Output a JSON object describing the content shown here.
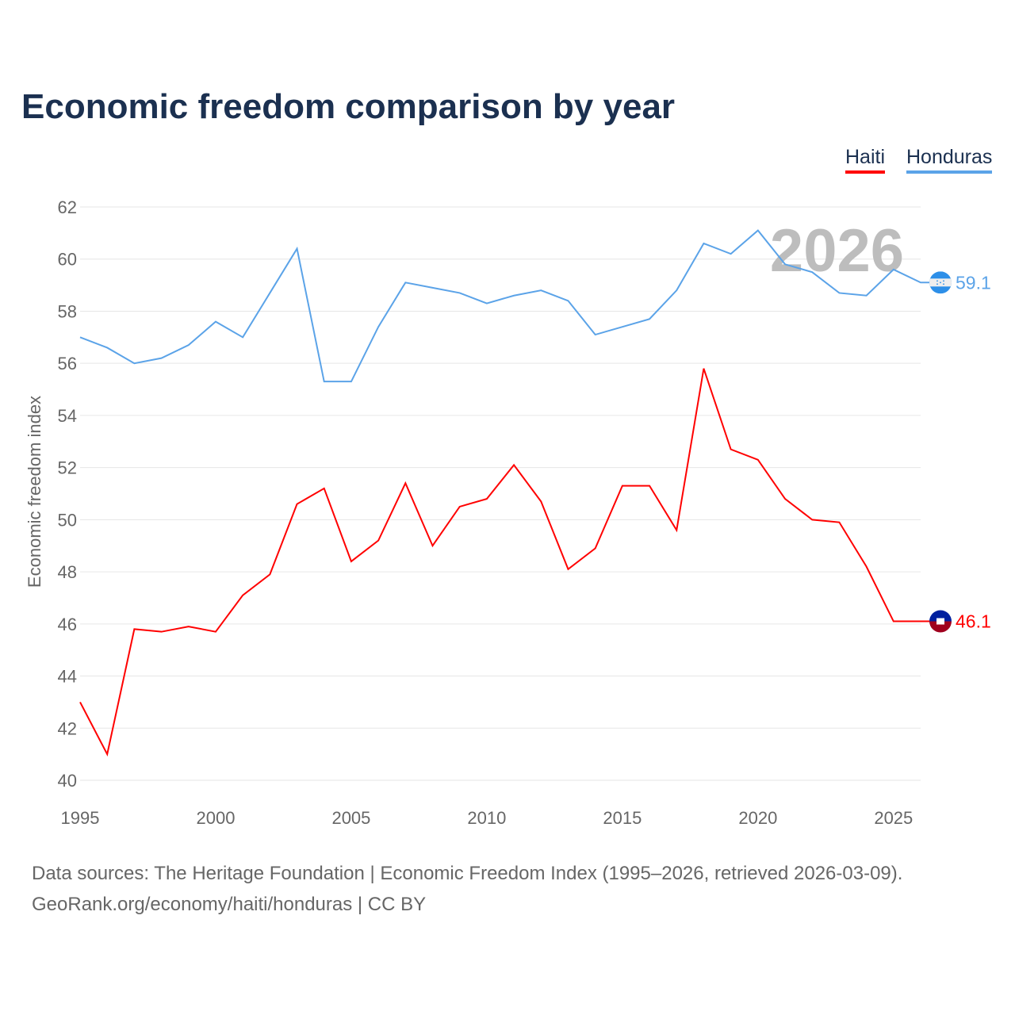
{
  "title": "Economic freedom comparison by year",
  "footer": {
    "line1": "Data sources: The Heritage Foundation | Economic Freedom Index (1995–2026, retrieved 2026-03-09).",
    "line2": "GeoRank.org/economy/haiti/honduras | CC BY"
  },
  "chart_data": {
    "type": "line",
    "title": "Economic freedom comparison by year",
    "xlabel": "",
    "ylabel": "Economic freedom index",
    "ylim": [
      40,
      62
    ],
    "xlim": [
      1995,
      2026
    ],
    "yticks": [
      "40",
      "42",
      "44",
      "46",
      "48",
      "50",
      "52",
      "54",
      "56",
      "58",
      "60",
      "62"
    ],
    "xticks": [
      "1995",
      "2000",
      "2005",
      "2010",
      "2015",
      "2020",
      "2025"
    ],
    "year_watermark": "2026",
    "legend": "top-right",
    "x": [
      1995,
      1996,
      1997,
      1998,
      1999,
      2000,
      2001,
      2002,
      2003,
      2004,
      2005,
      2006,
      2007,
      2008,
      2009,
      2010,
      2011,
      2012,
      2013,
      2014,
      2015,
      2016,
      2017,
      2018,
      2019,
      2020,
      2021,
      2022,
      2023,
      2024,
      2025,
      2026
    ],
    "series": [
      {
        "name": "Haiti",
        "color": "#ff0000",
        "end_label": "46.1",
        "values": [
          43.0,
          41.0,
          45.8,
          45.7,
          45.9,
          45.7,
          47.1,
          47.9,
          50.6,
          51.2,
          48.4,
          49.2,
          51.4,
          49.0,
          50.5,
          50.8,
          52.1,
          50.7,
          48.1,
          48.9,
          51.3,
          51.3,
          49.6,
          55.8,
          52.7,
          52.3,
          50.8,
          50.0,
          49.9,
          48.2,
          46.1,
          46.1
        ]
      },
      {
        "name": "Honduras",
        "color": "#5ba3e8",
        "end_label": "59.1",
        "values": [
          57.0,
          56.6,
          56.0,
          56.2,
          56.7,
          57.6,
          57.0,
          58.7,
          60.4,
          55.3,
          55.3,
          57.4,
          59.1,
          58.9,
          58.7,
          58.3,
          58.6,
          58.8,
          58.4,
          57.1,
          57.4,
          57.7,
          58.8,
          60.6,
          60.2,
          61.1,
          59.8,
          59.5,
          58.7,
          58.6,
          59.6,
          59.1
        ]
      }
    ]
  }
}
